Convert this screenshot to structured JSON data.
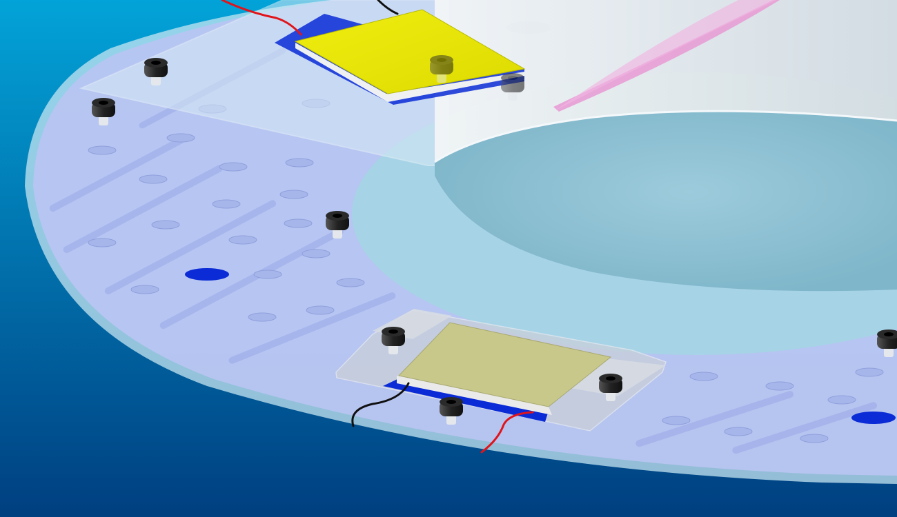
{
  "scene": {
    "background": {
      "top": "#02a3d8",
      "bottom": "#003f80"
    },
    "colors": {
      "plate": "#b9c4f2",
      "plate_edge": "#9fd3e8",
      "plate_rim": "#c5e6f2",
      "cylinder": "#e6ecee",
      "cylinder_opening": "#8fc5d8",
      "peltier_top": "#e8e600",
      "peltier_bottom": "#c8c88a",
      "bracket": "#c9cfd8",
      "hole_through": "#0a2bd6",
      "screw": "#2a2a2a",
      "wire_red": "#e0141a",
      "wire_black": "#111111",
      "pink_blade": "#e89ad4"
    },
    "icons": [
      "plate-icon",
      "cylinder-icon",
      "peltier-module-icon",
      "screw-icon",
      "wire-icon",
      "through-hole-icon"
    ]
  }
}
